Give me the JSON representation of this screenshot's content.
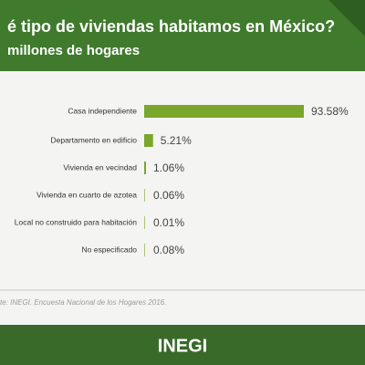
{
  "chart_data": {
    "type": "bar",
    "orientation": "horizontal",
    "title": "é tipo de viviendas habitamos en México?",
    "subtitle": "millones de hogares",
    "categories": [
      "Casa independiente",
      "Departamento en edificio",
      "Vivienda en vecindad",
      "Vivienda en cuarto de azotea",
      "Local no construido para habitación",
      "No especificado"
    ],
    "values": [
      93.58,
      5.21,
      1.06,
      0.06,
      0.01,
      0.08
    ],
    "value_labels": [
      "93.58%",
      "5.21%",
      "1.06%",
      "0.06%",
      "0.01%",
      "0.08%"
    ],
    "color": "#7aa62b",
    "xlim": [
      0,
      100
    ],
    "source": "te: INEGI. Encuesta Nacional de los Hogares 2016.",
    "logo": "INEGI"
  }
}
